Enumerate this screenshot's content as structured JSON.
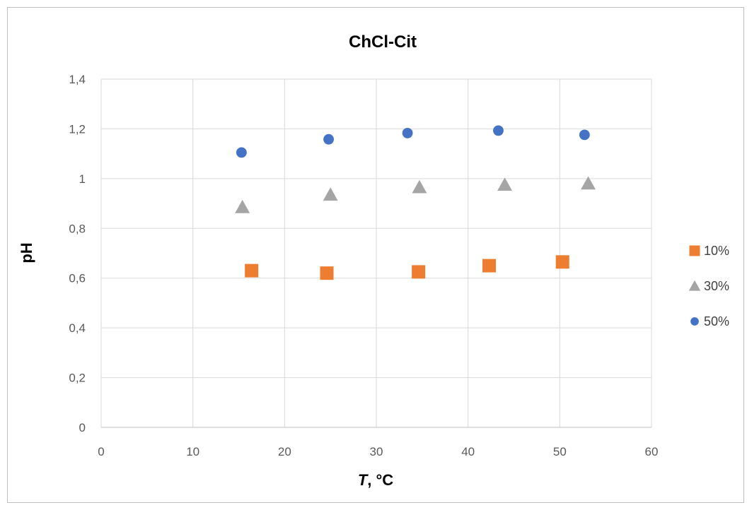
{
  "chart_data": {
    "type": "scatter",
    "title": "ChCl-Cit",
    "xlabel_italic": "T",
    "xlabel_rest": ", °C",
    "ylabel": "pH",
    "xlim": [
      0,
      60
    ],
    "ylim": [
      0,
      1.4
    ],
    "x_ticks": [
      "0",
      "10",
      "20",
      "30",
      "40",
      "50",
      "60"
    ],
    "y_ticks": [
      "0",
      "0,2",
      "0,4",
      "0,6",
      "0,8",
      "1",
      "1,2",
      "1,4"
    ],
    "grid": true,
    "legend_position": "right",
    "series": [
      {
        "name": "10%",
        "marker": "square",
        "color": "#ed7d31",
        "points": [
          [
            16.4,
            0.63
          ],
          [
            24.6,
            0.62
          ],
          [
            34.6,
            0.625
          ],
          [
            42.3,
            0.65
          ],
          [
            50.3,
            0.665
          ]
        ]
      },
      {
        "name": "30%",
        "marker": "triangle",
        "color": "#a5a5a5",
        "points": [
          [
            15.4,
            0.885
          ],
          [
            25.0,
            0.935
          ],
          [
            34.7,
            0.965
          ],
          [
            44.0,
            0.975
          ],
          [
            53.1,
            0.98
          ]
        ]
      },
      {
        "name": "50%",
        "marker": "circle",
        "color": "#4472c4",
        "points": [
          [
            15.3,
            1.105
          ],
          [
            24.8,
            1.158
          ],
          [
            33.4,
            1.183
          ],
          [
            43.3,
            1.193
          ],
          [
            52.7,
            1.176
          ]
        ]
      }
    ]
  }
}
